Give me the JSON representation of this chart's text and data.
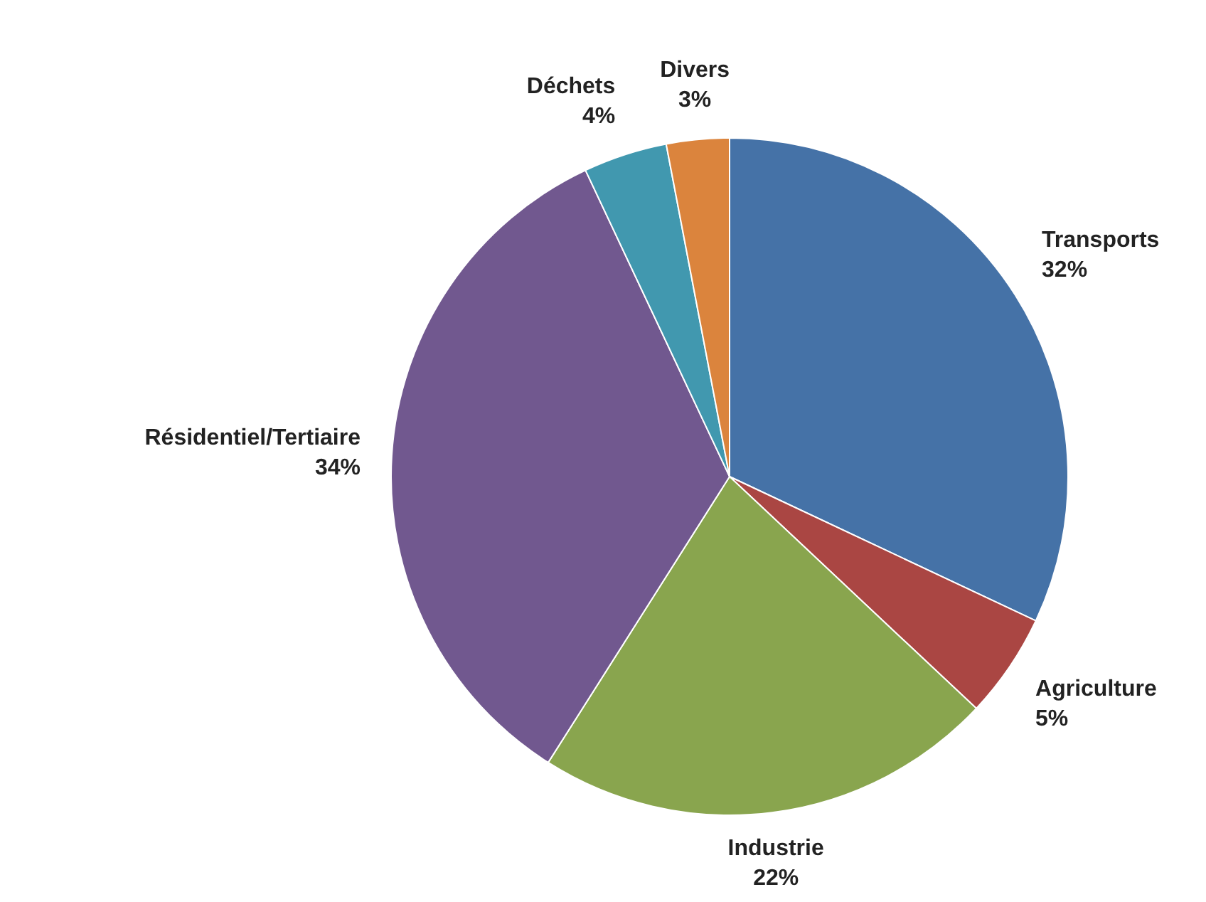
{
  "chart_data": {
    "type": "pie",
    "categories": [
      "Transports",
      "Agriculture",
      "Industrie",
      "Résidentiel/Tertiaire",
      "Déchets",
      "Divers"
    ],
    "values": [
      32,
      5,
      22,
      34,
      4,
      3
    ],
    "value_labels": [
      "32%",
      "5%",
      "22%",
      "34%",
      "4%",
      "3%"
    ],
    "colors": [
      "#4572a7",
      "#aa4643",
      "#89a54e",
      "#71588f",
      "#4198af",
      "#db843d"
    ]
  }
}
